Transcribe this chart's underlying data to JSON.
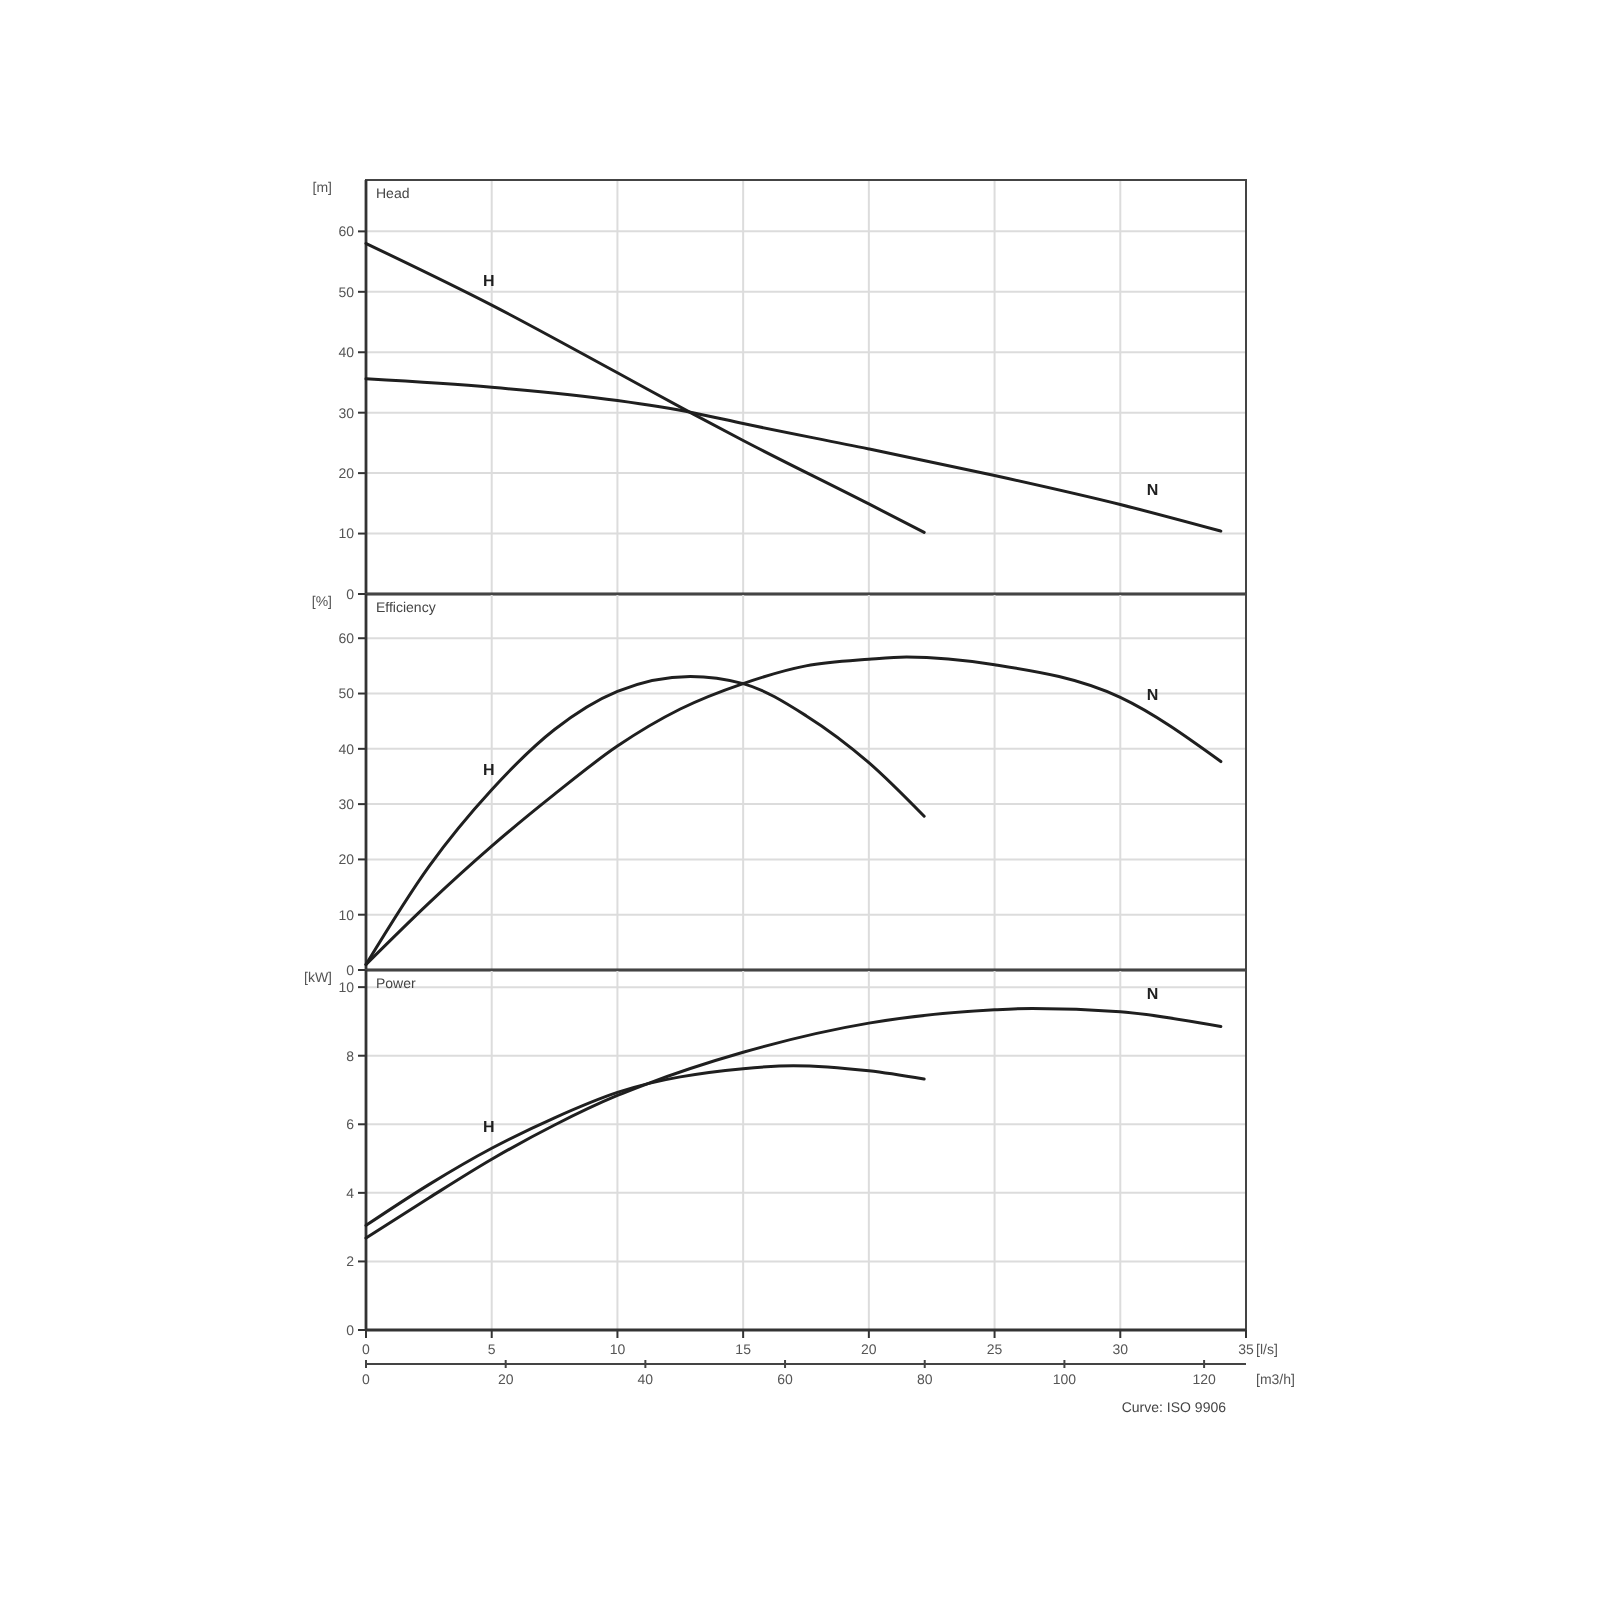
{
  "chart_data": [
    {
      "type": "line",
      "title": "Head",
      "ylabel": "[m]",
      "xlim": [
        0,
        35
      ],
      "xticks": [
        0,
        5,
        10,
        15,
        20,
        25,
        30,
        35
      ],
      "ylim": [
        0,
        68.5
      ],
      "yticks": [
        0,
        10,
        20,
        30,
        40,
        50,
        60
      ],
      "grid": true,
      "tick_labels": "y",
      "series": [
        {
          "name": "H",
          "color": "#1f1f1f",
          "x": [
            0,
            5,
            10,
            13,
            15,
            20,
            22.2
          ],
          "values": [
            58,
            47.8,
            36.6,
            29.8,
            25.4,
            14.9,
            10.2
          ]
        },
        {
          "name": "N",
          "color": "#1f1f1f",
          "x": [
            0,
            5,
            10,
            13,
            15,
            20,
            25,
            30,
            34
          ],
          "values": [
            35.6,
            34.2,
            32,
            30,
            28.2,
            24,
            19.6,
            14.8,
            10.4
          ]
        }
      ]
    },
    {
      "type": "line",
      "title": "Efficiency",
      "ylabel": "[%]",
      "xlim": [
        0,
        35
      ],
      "xticks": [
        0,
        5,
        10,
        15,
        20,
        25,
        30,
        35
      ],
      "ylim": [
        0,
        68
      ],
      "yticks": [
        0,
        10,
        20,
        30,
        40,
        50,
        60
      ],
      "grid": true,
      "tick_labels": "y",
      "series": [
        {
          "name": "H",
          "color": "#1f1f1f",
          "x": [
            0,
            2.5,
            5,
            7.5,
            10,
            12.9,
            15,
            17.5,
            20,
            22.2
          ],
          "values": [
            1,
            18.7,
            32.6,
            43.5,
            50.4,
            53.1,
            51.8,
            46,
            37.5,
            27.8
          ]
        },
        {
          "name": "N",
          "color": "#1f1f1f",
          "x": [
            0,
            2.5,
            5,
            7.5,
            10,
            12.5,
            15,
            17.5,
            20,
            21.5,
            25,
            30,
            34
          ],
          "values": [
            1,
            12.1,
            22.4,
            31.8,
            40.5,
            47.2,
            51.8,
            55,
            56.2,
            56.6,
            55.2,
            49.3,
            37.7
          ]
        }
      ]
    },
    {
      "type": "line",
      "title": "Power",
      "ylabel": "[kW]",
      "xlabel": "[l/s]",
      "x2label": "[m3/h]",
      "xlim": [
        0,
        35
      ],
      "xticks": [
        0,
        5,
        10,
        15,
        20,
        25,
        30,
        35
      ],
      "x2lim": [
        0,
        126
      ],
      "x2ticks": [
        0,
        20,
        40,
        60,
        80,
        100,
        120
      ],
      "ylim": [
        0,
        10.5
      ],
      "yticks": [
        0,
        2,
        4,
        6,
        8,
        10
      ],
      "grid": true,
      "annotations": [
        "Curve: ISO 9906"
      ],
      "series": [
        {
          "name": "H",
          "color": "#1f1f1f",
          "x": [
            0,
            2.5,
            5,
            7.5,
            10,
            15,
            17,
            20,
            22.2
          ],
          "values": [
            3.05,
            4.24,
            5.3,
            6.19,
            6.93,
            7.62,
            7.71,
            7.56,
            7.32
          ]
        },
        {
          "name": "N",
          "color": "#1f1f1f",
          "x": [
            0,
            2.5,
            5,
            7.5,
            10,
            11,
            15,
            20,
            25,
            26.5,
            30,
            34
          ],
          "values": [
            2.68,
            3.85,
            4.98,
            5.98,
            6.84,
            7.13,
            8.1,
            8.95,
            9.34,
            9.38,
            9.28,
            8.85
          ]
        }
      ]
    }
  ]
}
